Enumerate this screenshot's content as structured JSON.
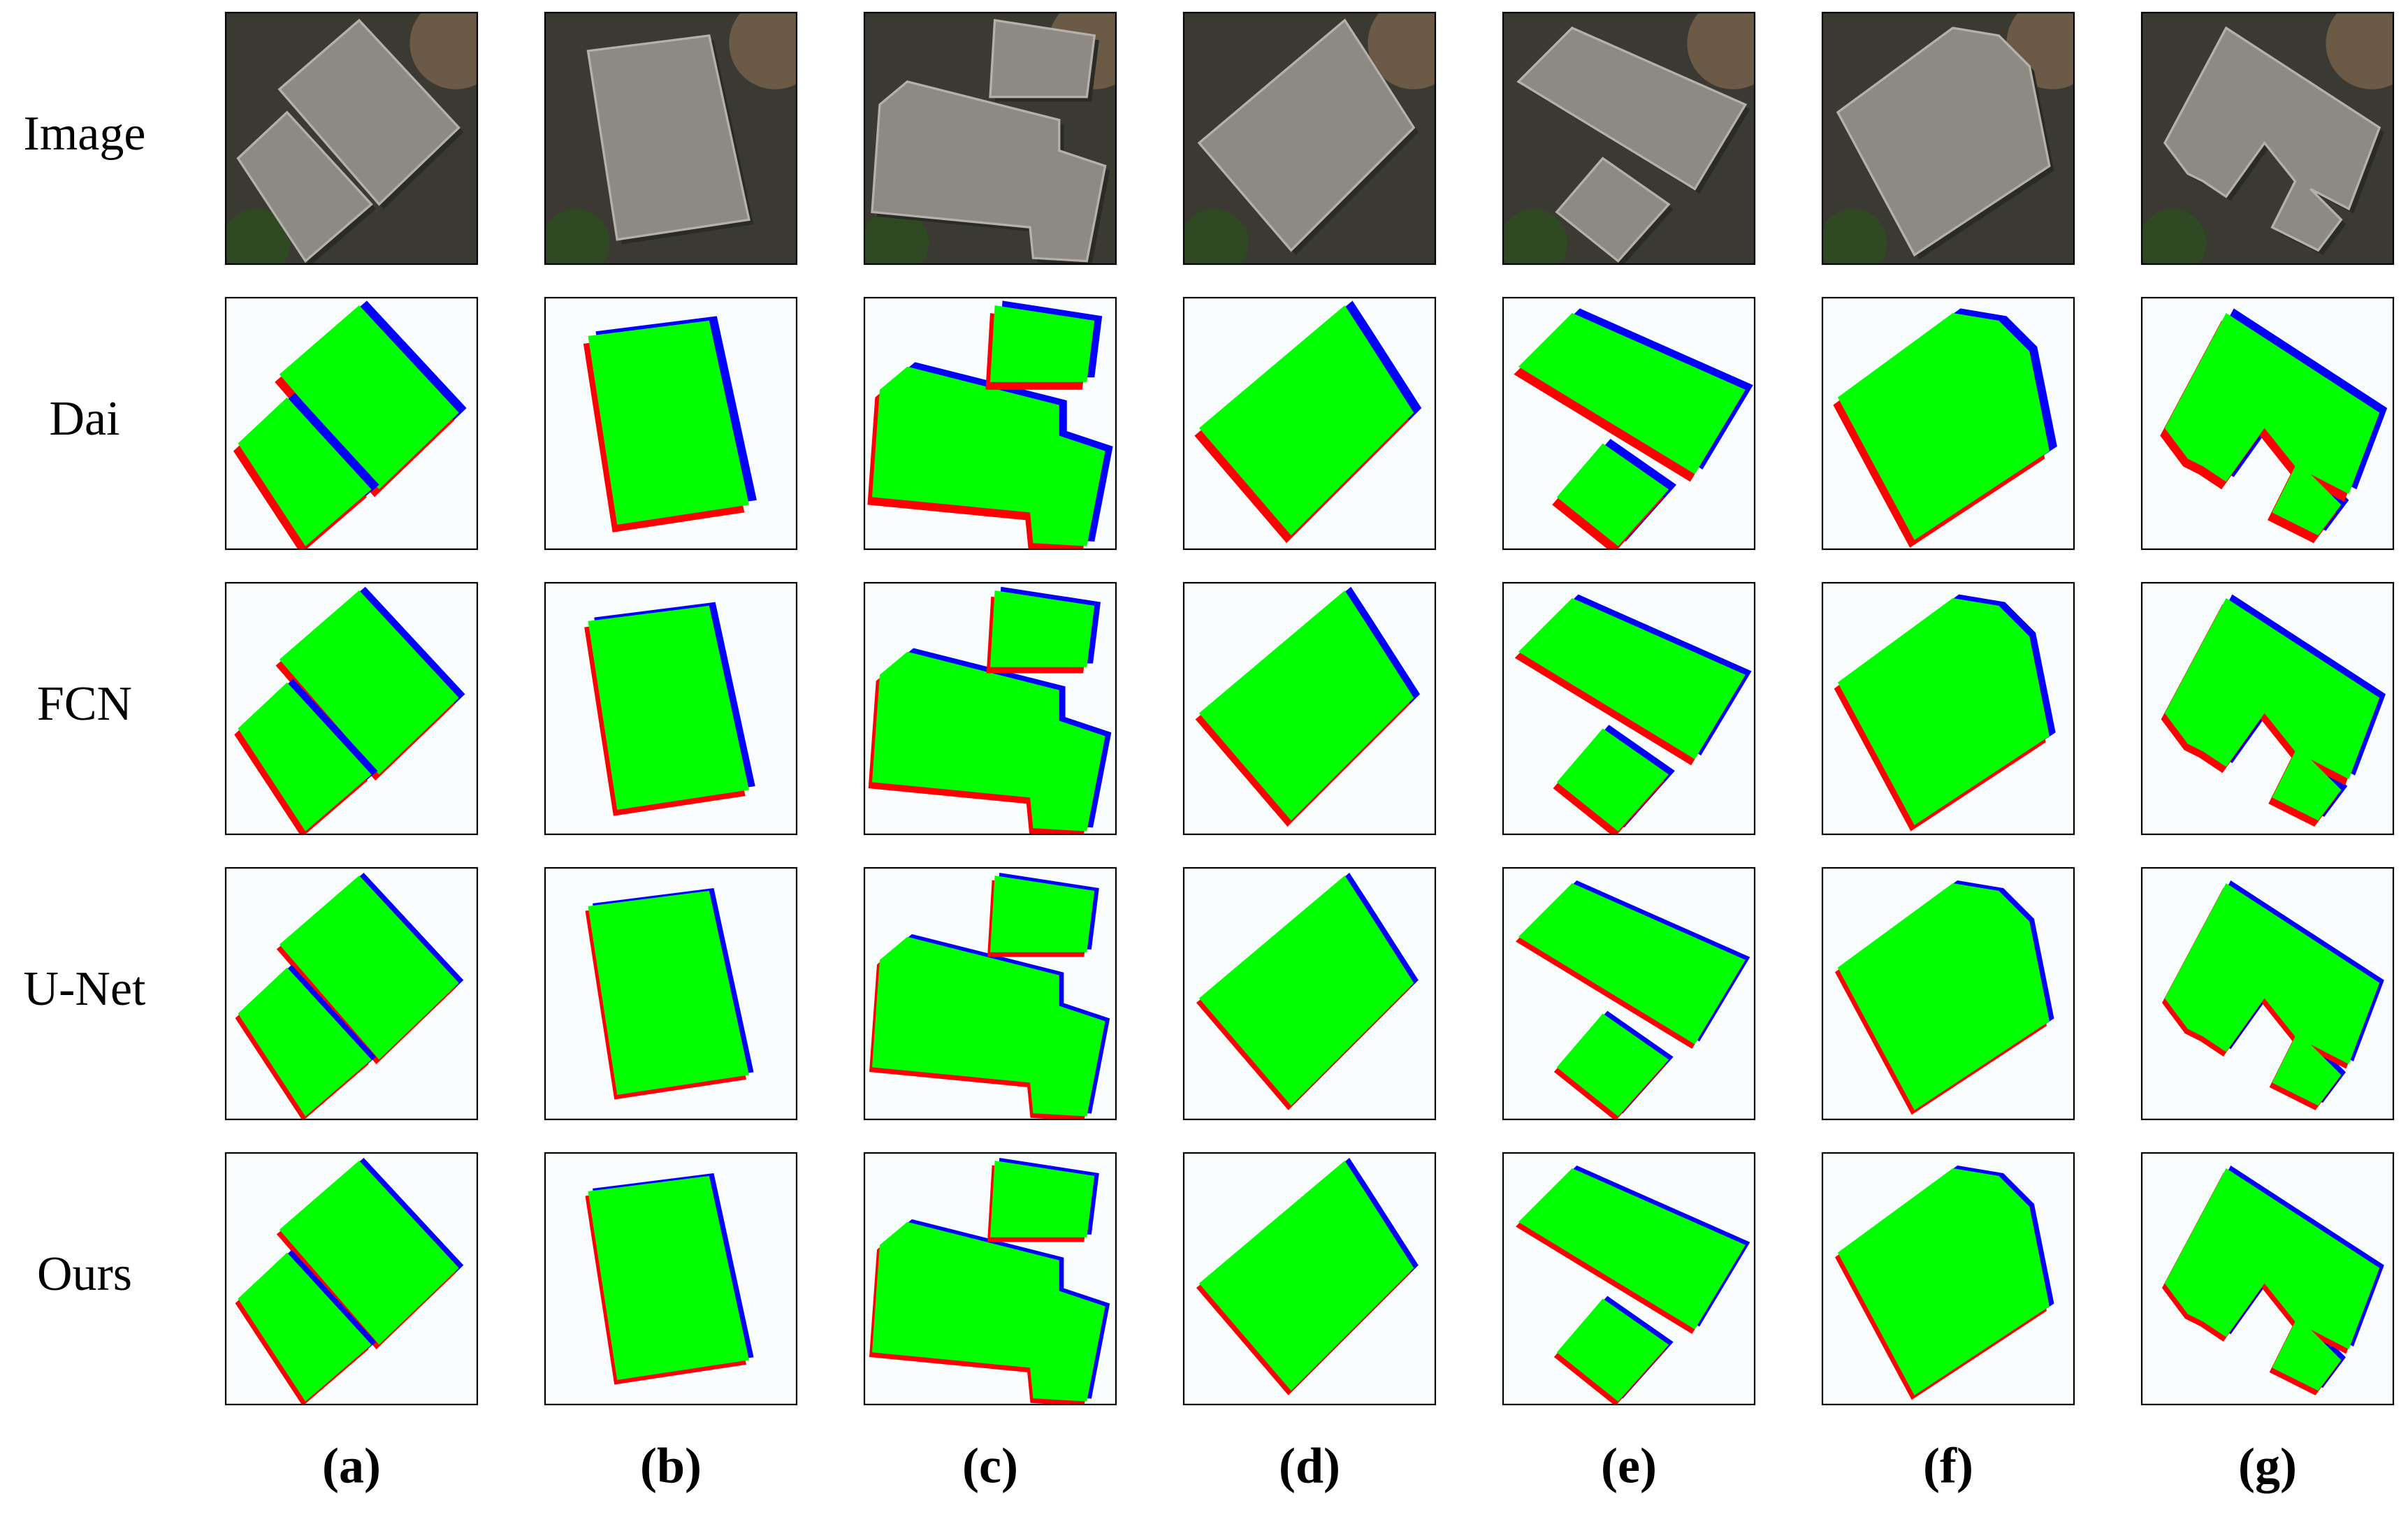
{
  "row_labels": [
    "Image",
    "Dai",
    "FCN",
    "U-Net",
    "Ours"
  ],
  "column_labels": [
    "(a)",
    "(b)",
    "(c)",
    "(d)",
    "(e)",
    "(f)",
    "(g)"
  ]
}
